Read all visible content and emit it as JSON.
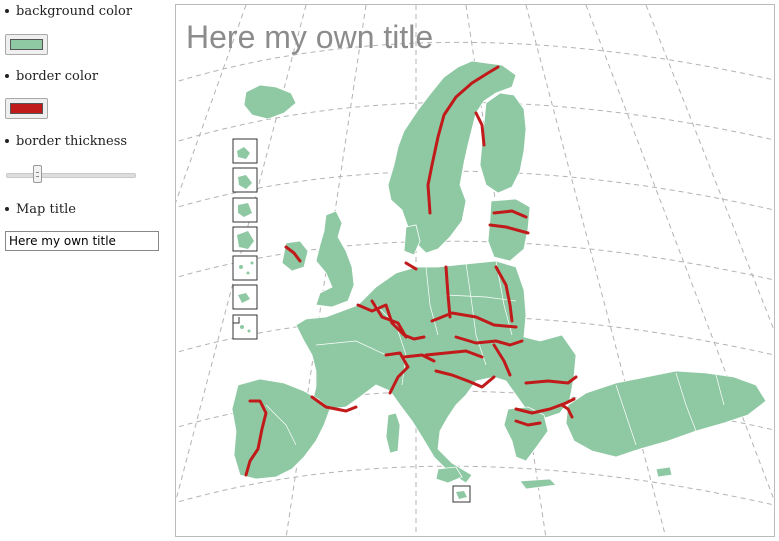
{
  "options": {
    "background_color": {
      "label": "background color",
      "value": "#8fc9a4"
    },
    "border_color": {
      "label": "border color",
      "value": "#c01a1a"
    },
    "border_thickness": {
      "label": "border thickness",
      "value_fraction": 0.25
    },
    "map_title": {
      "label": "Map title",
      "value": "Here my own title"
    }
  },
  "map": {
    "title": "Here my own title",
    "fill_color": "#8fc9a4",
    "border_color": "#c01a1a",
    "graticule_color": "#b3b3b3",
    "inset_count": 8
  }
}
